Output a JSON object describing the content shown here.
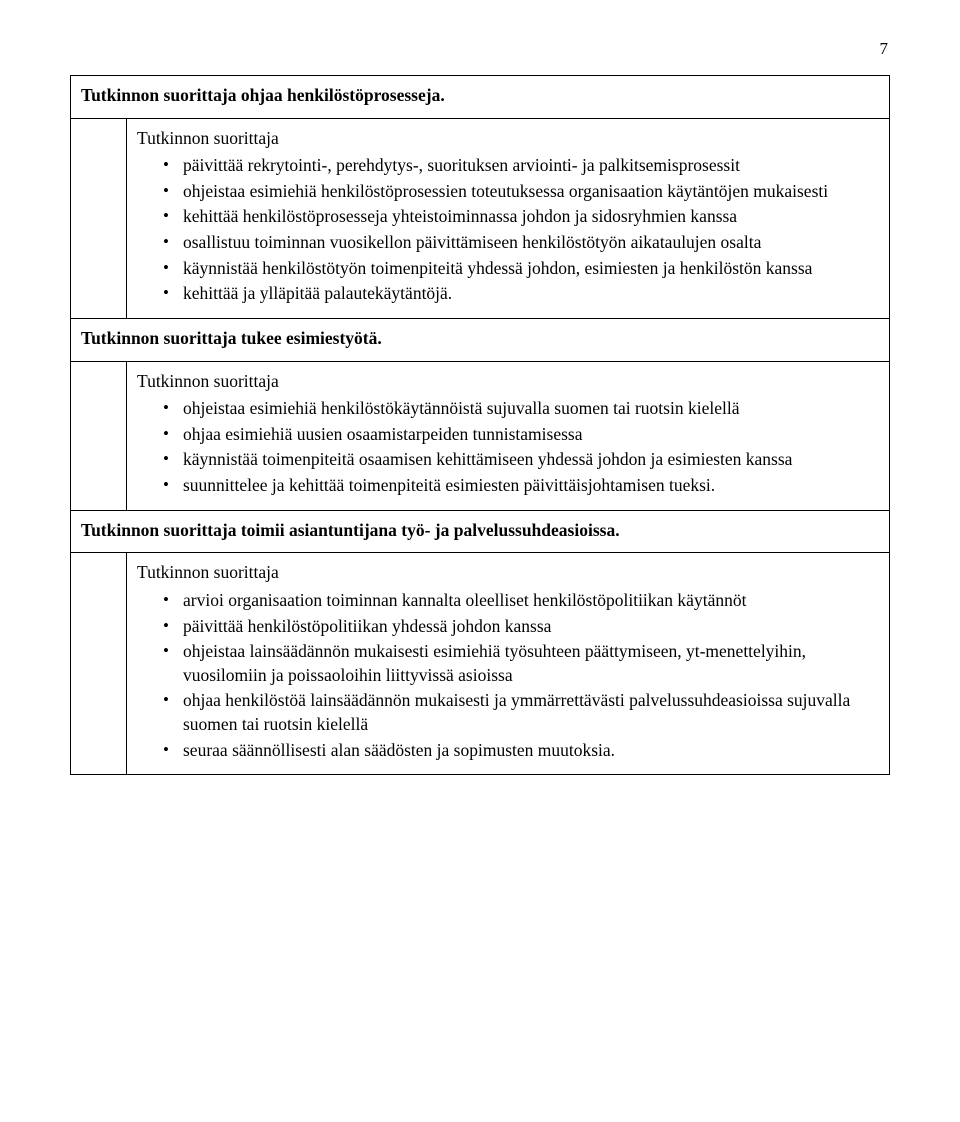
{
  "page_number": "7",
  "sections": [
    {
      "heading": "Tutkinnon suorittaja ohjaa henkilöstöprosesseja.",
      "intro": "Tutkinnon suorittaja",
      "bullets": [
        "päivittää rekrytointi-, perehdytys-, suorituksen arviointi- ja palkitsemisprosessit",
        "ohjeistaa esimiehiä henkilöstöprosessien toteutuksessa organisaation käytäntöjen mukaisesti",
        "kehittää henkilöstöprosesseja yhteistoiminnassa johdon ja sidosryhmien kanssa",
        "osallistuu toiminnan vuosikellon päivittämiseen henkilöstötyön aikataulujen osalta",
        "käynnistää henkilöstötyön toimenpiteitä yhdessä johdon, esimiesten ja henkilöstön kanssa",
        "kehittää ja ylläpitää palautekäytäntöjä."
      ]
    },
    {
      "heading": "Tutkinnon suorittaja tukee esimiestyötä.",
      "intro": "Tutkinnon suorittaja",
      "bullets": [
        "ohjeistaa esimiehiä henkilöstökäytännöistä sujuvalla suomen tai ruotsin kielellä",
        "ohjaa esimiehiä uusien osaamistarpeiden tunnistamisessa",
        "käynnistää toimenpiteitä osaamisen kehittämiseen yhdessä johdon ja esimiesten kanssa",
        "suunnittelee ja kehittää toimenpiteitä esimiesten päivittäisjohtamisen tueksi."
      ]
    },
    {
      "heading": "Tutkinnon suorittaja toimii asiantuntijana työ- ja palvelussuhdeasioissa.",
      "intro": "Tutkinnon suorittaja",
      "bullets": [
        "arvioi organisaation toiminnan kannalta oleelliset henkilöstöpolitiikan käytännöt",
        "päivittää henkilöstöpolitiikan yhdessä johdon kanssa",
        "ohjeistaa lainsäädännön mukaisesti esimiehiä työsuhteen päättymiseen, yt-menettelyihin, vuosilomiin ja poissaoloihin liittyvissä asioissa",
        "ohjaa henkilöstöä lainsäädännön mukaisesti ja ymmärrettävästi palvelussuhdeasioissa sujuvalla suomen tai ruotsin kielellä",
        "seuraa säännöllisesti alan säädösten ja sopimusten muutoksia."
      ]
    }
  ]
}
